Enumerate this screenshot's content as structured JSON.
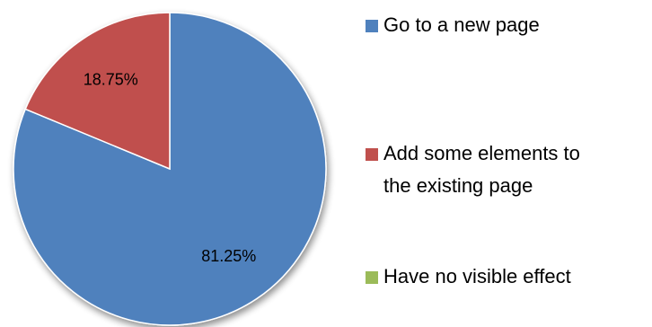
{
  "chart_data": {
    "type": "pie",
    "slices": [
      {
        "label": "Go to a new page",
        "value": 81.25,
        "color": "#4F81BD",
        "data_label": "81.25%"
      },
      {
        "label": "Add some elements to the existing page",
        "value": 18.75,
        "color": "#C0504D",
        "data_label": "18.75%"
      },
      {
        "label": "Have no visible effect",
        "value": 0,
        "color": "#9BBB59",
        "data_label": ""
      }
    ],
    "legend": {
      "placement": "right",
      "entries": [
        {
          "lines": [
            "Go to a new page"
          ],
          "color": "#4F81BD"
        },
        {
          "lines": [
            "Add some elements to",
            "the existing page"
          ],
          "color": "#C0504D"
        },
        {
          "lines": [
            "Have no visible effect"
          ],
          "color": "#9BBB59"
        }
      ]
    },
    "start_angle": "top",
    "direction": "clockwise",
    "shadow": true
  }
}
